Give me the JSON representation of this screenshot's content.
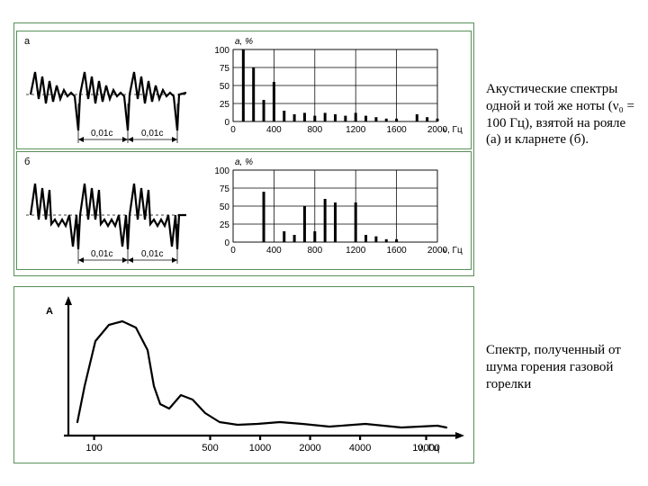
{
  "top_figure": {
    "border_color": "#5a8f5a",
    "background": "#ffffff",
    "panel_a_label": "а",
    "panel_b_label": "б",
    "waveform_period_label_1": "0,01с",
    "waveform_period_label_2": "0,01с",
    "spectrum_a": {
      "ylabel": "a, %",
      "xlabel": "ν, Гц",
      "ylim": [
        0,
        100
      ],
      "yticks": [
        0,
        25,
        50,
        75,
        100
      ],
      "xlim": [
        0,
        2000
      ],
      "xticks": [
        0,
        400,
        800,
        1200,
        1600,
        2000
      ],
      "grid_color": "#000000",
      "bar_color": "#000000",
      "fcomp": [
        100,
        200,
        300,
        400,
        500,
        600,
        700,
        800,
        900,
        1000,
        1100,
        1200,
        1300,
        1400,
        1500,
        1600,
        1700,
        1800,
        1900,
        2000
      ],
      "amps": [
        100,
        75,
        30,
        55,
        15,
        10,
        12,
        8,
        12,
        10,
        8,
        12,
        8,
        6,
        4,
        4,
        0,
        10,
        6,
        4
      ]
    },
    "spectrum_b": {
      "ylabel": "a, %",
      "xlabel": "ν, Гц",
      "ylim": [
        0,
        100
      ],
      "yticks": [
        0,
        25,
        50,
        75,
        100
      ],
      "xlim": [
        0,
        2000
      ],
      "xticks": [
        0,
        400,
        800,
        1200,
        1600,
        2000
      ],
      "grid_color": "#000000",
      "bar_color": "#000000",
      "fcomp": [
        100,
        200,
        300,
        400,
        500,
        600,
        700,
        800,
        900,
        1000,
        1100,
        1200,
        1300,
        1400,
        1500,
        1600,
        1700,
        1800,
        1900,
        2000
      ],
      "amps": [
        0,
        0,
        70,
        0,
        15,
        10,
        50,
        15,
        60,
        55,
        0,
        55,
        10,
        8,
        4,
        4,
        0,
        0,
        0,
        0
      ]
    }
  },
  "bottom_figure": {
    "ylabel": "A",
    "xlabel": "ν,  Гц",
    "xticks": [
      100,
      500,
      1000,
      2000,
      4000,
      10000
    ],
    "curve_color": "#000000",
    "curve_width": 2.8,
    "points": [
      [
        70,
        150
      ],
      [
        78,
        110
      ],
      [
        90,
        60
      ],
      [
        105,
        42
      ],
      [
        120,
        38
      ],
      [
        135,
        45
      ],
      [
        148,
        70
      ],
      [
        155,
        110
      ],
      [
        162,
        130
      ],
      [
        172,
        135
      ],
      [
        185,
        120
      ],
      [
        198,
        125
      ],
      [
        212,
        140
      ],
      [
        228,
        150
      ],
      [
        248,
        153
      ],
      [
        270,
        152
      ],
      [
        295,
        150
      ],
      [
        320,
        152
      ],
      [
        350,
        155
      ],
      [
        390,
        152
      ],
      [
        430,
        156
      ],
      [
        470,
        154
      ],
      [
        480,
        156
      ]
    ]
  },
  "caption_top": "Акустические спектры одной и той же ноты (ν₀ = 100 Гц), взятой на рояле (а) и кларнете (б).",
  "caption_bottom": "Спектр, полученный от шума горения газовой горелки"
}
